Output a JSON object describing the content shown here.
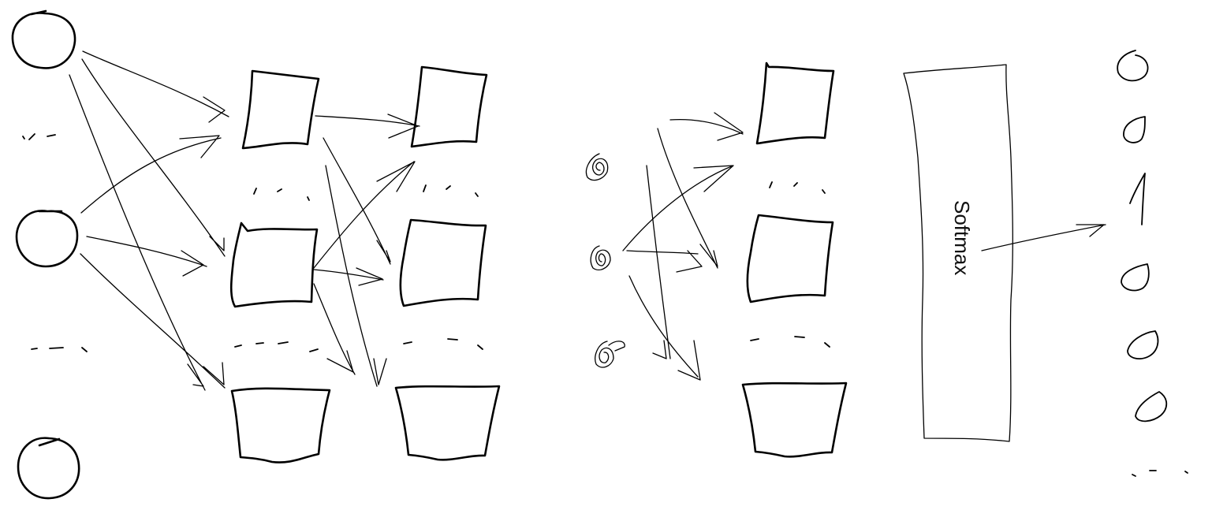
{
  "softmax": {
    "label": "Softmax"
  },
  "ink_color": "#000000",
  "background_color": "#ffffff"
}
